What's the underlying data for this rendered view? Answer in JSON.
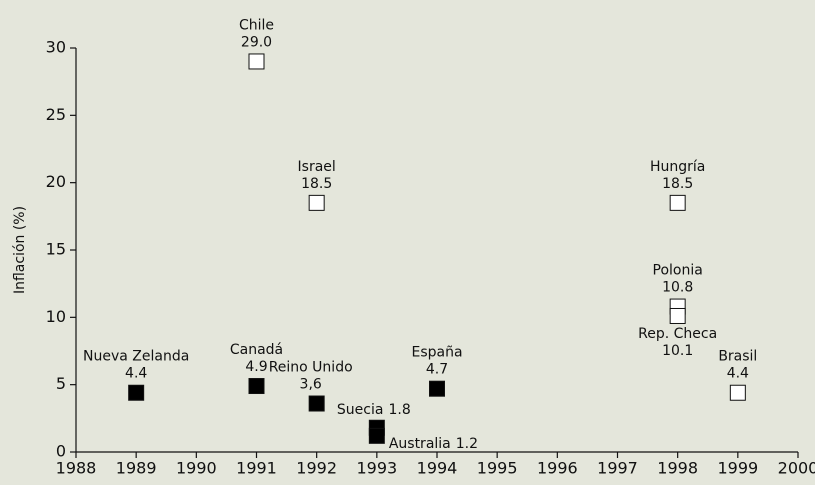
{
  "chart_data": {
    "type": "scatter",
    "y_label": "Inflación (%)",
    "xlim": [
      1988,
      2000
    ],
    "xticks": [
      1988,
      1989,
      1990,
      1991,
      1992,
      1993,
      1994,
      1995,
      1996,
      1997,
      1998,
      1999,
      2000
    ],
    "ylim": [
      0,
      30
    ],
    "yticks": [
      0,
      5,
      10,
      15,
      20,
      25,
      30
    ],
    "grid": false,
    "series": [
      {
        "color": "#000000",
        "x": [
          1989,
          1991,
          1992,
          1993,
          1993,
          1994
        ],
        "values": [
          4.4,
          4.9,
          3.6,
          1.8,
          1.2,
          4.7
        ],
        "labels": [
          "Nueva Zelanda",
          "Canadá",
          "Reino Unido",
          "Suecia",
          "Australia",
          "España"
        ],
        "value_labels": [
          "4.4",
          "4.9",
          "3,6",
          "1.8",
          "1.2",
          "4.7"
        ]
      },
      {
        "color": "#ffffff",
        "x": [
          1991,
          1992,
          1998,
          1998,
          1998,
          1999
        ],
        "values": [
          29.0,
          18.5,
          18.5,
          10.8,
          10.1,
          4.4
        ],
        "labels": [
          "Chile",
          "Israel",
          "Hungría",
          "Polonia",
          "Rep. Checa",
          "Brasil"
        ],
        "value_labels": [
          "29.0",
          "18.5",
          "18.5",
          "10.8",
          "10.1",
          "4.4"
        ]
      }
    ]
  }
}
